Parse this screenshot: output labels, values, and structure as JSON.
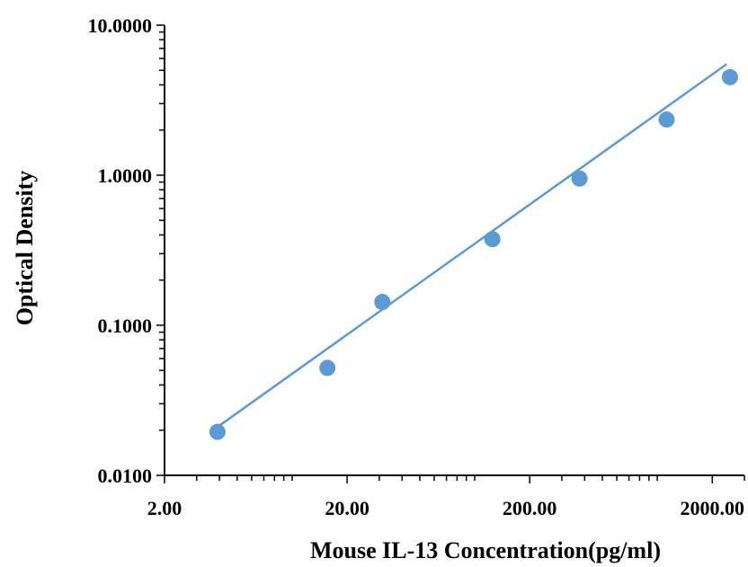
{
  "chart_data": {
    "type": "scatter",
    "title": "",
    "xlabel": "Mouse IL-13 Concentration(pg/ml)",
    "ylabel": "Optical Density",
    "x_scale": "log",
    "y_scale": "log",
    "xlim": [
      2,
      3000
    ],
    "ylim": [
      0.01,
      10
    ],
    "x_ticks": [
      {
        "value": 2,
        "label": "2.00"
      },
      {
        "value": 20,
        "label": "20.00"
      },
      {
        "value": 200,
        "label": "200.00"
      },
      {
        "value": 2000,
        "label": "2000.00"
      }
    ],
    "y_ticks": [
      {
        "value": 0.01,
        "label": "0.0100"
      },
      {
        "value": 0.1,
        "label": "0.1000"
      },
      {
        "value": 1,
        "label": "1.0000"
      },
      {
        "value": 10,
        "label": "10.0000"
      }
    ],
    "grid": false,
    "legend": "none",
    "series": [
      {
        "points": [
          {
            "x": 3.9,
            "y": 0.0195
          },
          {
            "x": 15.6,
            "y": 0.052
          },
          {
            "x": 31.2,
            "y": 0.143
          },
          {
            "x": 125,
            "y": 0.375
          },
          {
            "x": 375,
            "y": 0.95
          },
          {
            "x": 1125,
            "y": 2.35
          },
          {
            "x": 2500,
            "y": 4.5
          }
        ]
      }
    ],
    "trendline": {
      "x_start": 3.9,
      "y_start": 0.021,
      "x_end": 2400,
      "y_end": 5.5
    },
    "colors": {
      "marker": "#5b9bd5",
      "line": "#5b9bd5",
      "axis": "#000000"
    }
  }
}
